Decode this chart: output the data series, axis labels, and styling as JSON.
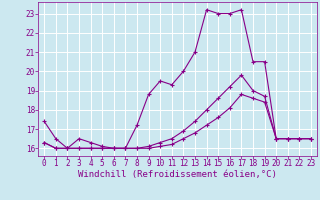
{
  "xlabel": "Windchill (Refroidissement éolien,°C)",
  "background_color": "#cce8f0",
  "line_color": "#880088",
  "grid_color": "#bbddee",
  "xlim": [
    -0.5,
    23.5
  ],
  "ylim": [
    15.6,
    23.6
  ],
  "xticks": [
    0,
    1,
    2,
    3,
    4,
    5,
    6,
    7,
    8,
    9,
    10,
    11,
    12,
    13,
    14,
    15,
    16,
    17,
    18,
    19,
    20,
    21,
    22,
    23
  ],
  "yticks": [
    16,
    17,
    18,
    19,
    20,
    21,
    22,
    23
  ],
  "line1_x": [
    0,
    1,
    2,
    3,
    4,
    5,
    6,
    7,
    8,
    9,
    10,
    11,
    12,
    13,
    14,
    15,
    16,
    17,
    18,
    19,
    20,
    21,
    22,
    23
  ],
  "line1_y": [
    17.4,
    16.5,
    16.0,
    16.5,
    16.3,
    16.1,
    16.0,
    16.0,
    17.2,
    18.8,
    19.5,
    19.3,
    20.0,
    21.0,
    23.2,
    23.0,
    23.0,
    23.2,
    20.5,
    20.5,
    16.5,
    16.5,
    16.5,
    16.5
  ],
  "line2_x": [
    0,
    1,
    2,
    3,
    4,
    5,
    6,
    7,
    8,
    9,
    10,
    11,
    12,
    13,
    14,
    15,
    16,
    17,
    18,
    19,
    20,
    21,
    22,
    23
  ],
  "line2_y": [
    16.3,
    16.0,
    16.0,
    16.0,
    16.0,
    16.0,
    16.0,
    16.0,
    16.0,
    16.1,
    16.3,
    16.5,
    16.9,
    17.4,
    18.0,
    18.6,
    19.2,
    19.8,
    19.0,
    18.7,
    16.5,
    16.5,
    16.5,
    16.5
  ],
  "line3_x": [
    0,
    1,
    2,
    3,
    4,
    5,
    6,
    7,
    8,
    9,
    10,
    11,
    12,
    13,
    14,
    15,
    16,
    17,
    18,
    19,
    20,
    21,
    22,
    23
  ],
  "line3_y": [
    16.3,
    16.0,
    16.0,
    16.0,
    16.0,
    16.0,
    16.0,
    16.0,
    16.0,
    16.0,
    16.1,
    16.2,
    16.5,
    16.8,
    17.2,
    17.6,
    18.1,
    18.8,
    18.6,
    18.4,
    16.5,
    16.5,
    16.5,
    16.5
  ],
  "marker": "+",
  "markersize": 3,
  "linewidth": 0.8,
  "font_color": "#880088",
  "font_family": "monospace",
  "label_fontsize": 6.5,
  "tick_fontsize": 5.5
}
